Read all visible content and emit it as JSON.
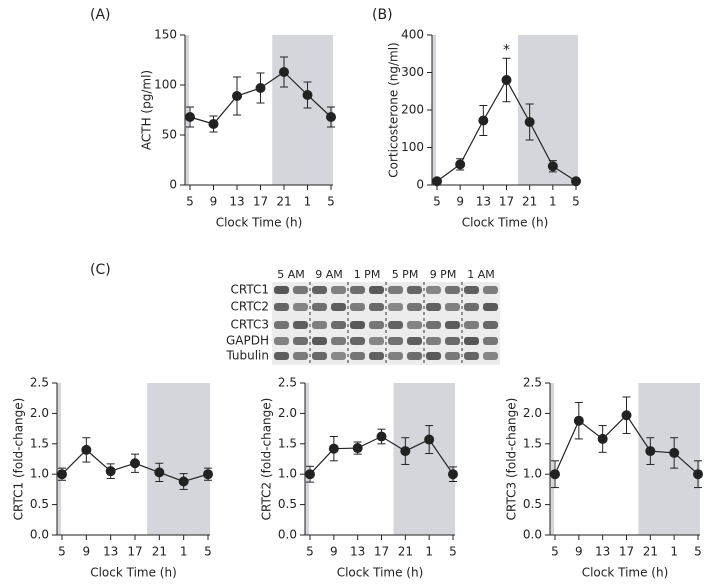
{
  "chart_data": [
    {
      "type": "line",
      "label": "(A)",
      "x_label": "Clock Time (h)",
      "y_label": "ACTH (pg/ml)",
      "categories": [
        "5",
        "9",
        "13",
        "17",
        "21",
        "1",
        "5"
      ],
      "values": [
        68,
        61,
        89,
        97,
        113,
        90,
        68
      ],
      "errors": [
        10,
        8,
        19,
        15,
        15,
        13,
        10
      ],
      "ylim": [
        0,
        150
      ],
      "yticks": [
        0,
        50,
        100,
        150
      ],
      "color": "#222222",
      "night_shading": true
    },
    {
      "type": "line",
      "label": "(B)",
      "x_label": "Clock Time (h)",
      "y_label": "Corticosterone (ng/ml)",
      "categories": [
        "5",
        "9",
        "13",
        "17",
        "21",
        "1",
        "5"
      ],
      "values": [
        10,
        55,
        172,
        280,
        168,
        50,
        10
      ],
      "errors": [
        5,
        15,
        40,
        58,
        48,
        15,
        5
      ],
      "annotations": [
        {
          "text": "*",
          "index": 3
        }
      ],
      "ylim": [
        0,
        400
      ],
      "yticks": [
        0,
        100,
        200,
        300,
        400
      ],
      "color": "#222222",
      "night_shading": true
    },
    {
      "type": "line",
      "label": "(C)",
      "x_label": "Clock Time (h)",
      "y_label": "CRTC1 (fold-change)",
      "categories": [
        "5",
        "9",
        "13",
        "17",
        "21",
        "1",
        "5"
      ],
      "values": [
        1.0,
        1.4,
        1.05,
        1.18,
        1.03,
        0.88,
        1.0
      ],
      "errors": [
        0.1,
        0.2,
        0.12,
        0.15,
        0.15,
        0.13,
        0.1
      ],
      "ylim": [
        0,
        2.5
      ],
      "yticks": [
        {
          "value": 0,
          "label": "0.0"
        },
        0.5,
        {
          "value": 1,
          "label": "1.0"
        },
        1.5,
        {
          "value": 2,
          "label": "2.0"
        },
        2.5
      ],
      "color": "#222222",
      "night_shading": true
    },
    {
      "type": "line",
      "x_label": "Clock Time (h)",
      "y_label": "CRTC2 (fold-change)",
      "categories": [
        "5",
        "9",
        "13",
        "17",
        "21",
        "1",
        "5"
      ],
      "values": [
        1.0,
        1.42,
        1.43,
        1.62,
        1.38,
        1.57,
        1.0
      ],
      "errors": [
        0.13,
        0.2,
        0.1,
        0.12,
        0.22,
        0.23,
        0.12
      ],
      "ylim": [
        0,
        2.5
      ],
      "yticks": [
        {
          "value": 0,
          "label": "0.0"
        },
        0.5,
        {
          "value": 1,
          "label": "1.0"
        },
        1.5,
        {
          "value": 2,
          "label": "2.0"
        },
        2.5
      ],
      "color": "#222222",
      "night_shading": true
    },
    {
      "type": "line",
      "x_label": "Clock Time (h)",
      "y_label": "CRTC3 (fold-change)",
      "categories": [
        "5",
        "9",
        "13",
        "17",
        "21",
        "1",
        "5"
      ],
      "values": [
        1.0,
        1.88,
        1.58,
        1.97,
        1.38,
        1.35,
        1.0
      ],
      "errors": [
        0.22,
        0.3,
        0.22,
        0.3,
        0.22,
        0.25,
        0.22
      ],
      "ylim": [
        0,
        2.5
      ],
      "yticks": [
        {
          "value": 0,
          "label": "0.0"
        },
        0.5,
        {
          "value": 1,
          "label": "1.0"
        },
        1.5,
        {
          "value": 2,
          "label": "2.0"
        },
        2.5
      ],
      "color": "#222222",
      "night_shading": true
    }
  ],
  "blot": {
    "rows": [
      "CRTC1",
      "CRTC2",
      "CRTC3",
      "GAPDH",
      "Tubulin"
    ],
    "times": [
      "5 AM",
      "9 AM",
      "1 PM",
      "5 PM",
      "9 PM",
      "1 AM"
    ]
  }
}
